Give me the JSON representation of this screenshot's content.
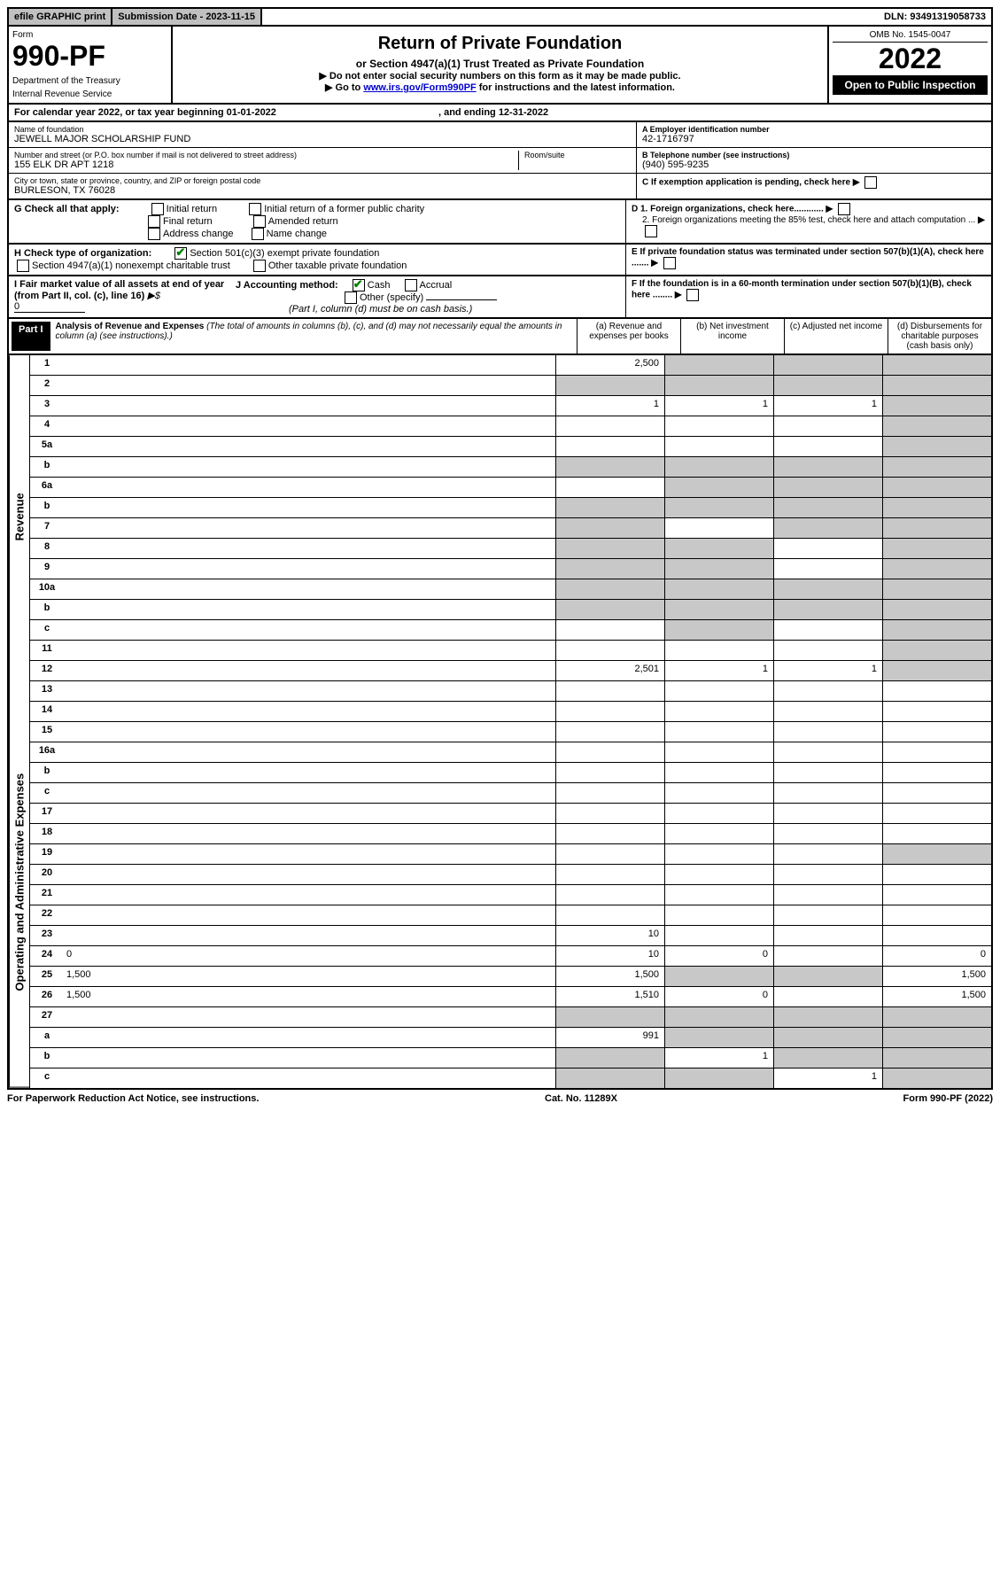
{
  "topbar": {
    "efile": "efile GRAPHIC print",
    "submission": "Submission Date - 2023-11-15",
    "dln": "DLN: 93491319058733"
  },
  "header": {
    "form_label": "Form",
    "form_num": "990-PF",
    "dept1": "Department of the Treasury",
    "dept2": "Internal Revenue Service",
    "title": "Return of Private Foundation",
    "subtitle": "or Section 4947(a)(1) Trust Treated as Private Foundation",
    "note1": "▶ Do not enter social security numbers on this form as it may be made public.",
    "note2_pre": "▶ Go to ",
    "note2_link": "www.irs.gov/Form990PF",
    "note2_post": " for instructions and the latest information.",
    "omb": "OMB No. 1545-0047",
    "taxyear": "2022",
    "open_public": "Open to Public Inspection"
  },
  "calyear": {
    "text": "For calendar year 2022, or tax year beginning 01-01-2022",
    "ending": ", and ending 12-31-2022"
  },
  "info": {
    "name_lbl": "Name of foundation",
    "name_val": "JEWELL MAJOR SCHOLARSHIP FUND",
    "addr_lbl": "Number and street (or P.O. box number if mail is not delivered to street address)",
    "addr_val": "155 ELK DR APT 1218",
    "room_lbl": "Room/suite",
    "city_lbl": "City or town, state or province, country, and ZIP or foreign postal code",
    "city_val": "BURLESON, TX  76028",
    "ein_lbl": "A Employer identification number",
    "ein_val": "42-1716797",
    "phone_lbl": "B Telephone number (see instructions)",
    "phone_val": "(940) 595-9235",
    "pending_lbl": "C If exemption application is pending, check here"
  },
  "checks": {
    "g_label": "G Check all that apply:",
    "initial": "Initial return",
    "initial_former": "Initial return of a former public charity",
    "final": "Final return",
    "amended": "Amended return",
    "address": "Address change",
    "name_change": "Name change",
    "h_label": "H Check type of organization:",
    "h_501c3": "Section 501(c)(3) exempt private foundation",
    "h_4947": "Section 4947(a)(1) nonexempt charitable trust",
    "h_other": "Other taxable private foundation",
    "d1": "D 1. Foreign organizations, check here............",
    "d2": "2. Foreign organizations meeting the 85% test, check here and attach computation ...",
    "e": "E   If private foundation status was terminated under section 507(b)(1)(A), check here .......",
    "i_label": "I Fair market value of all assets at end of year (from Part II, col. (c), line 16)",
    "i_prefix": "▶$",
    "i_val": "0",
    "j_label": "J Accounting method:",
    "j_cash": "Cash",
    "j_accrual": "Accrual",
    "j_other": "Other (specify)",
    "j_note": "(Part I, column (d) must be on cash basis.)",
    "f": "F   If the foundation is in a 60-month termination under section 507(b)(1)(B), check here ........"
  },
  "part1": {
    "label": "Part I",
    "title": "Analysis of Revenue and Expenses",
    "title_note": "(The total of amounts in columns (b), (c), and (d) may not necessarily equal the amounts in column (a) (see instructions).)",
    "col_a": "(a)   Revenue and expenses per books",
    "col_b": "(b)   Net investment income",
    "col_c": "(c)   Adjusted net income",
    "col_d": "(d)   Disbursements for charitable purposes (cash basis only)"
  },
  "side": {
    "revenue": "Revenue",
    "opexp": "Operating and Administrative Expenses"
  },
  "rows": [
    {
      "n": "1",
      "d": "",
      "a": "2,500",
      "b": "",
      "c": "",
      "sb": true,
      "sc": true,
      "sd": true
    },
    {
      "n": "2",
      "d": "",
      "a": "",
      "b": "",
      "c": "",
      "sa": true,
      "sb": true,
      "sc": true,
      "sd": true
    },
    {
      "n": "3",
      "d": "",
      "a": "1",
      "b": "1",
      "c": "1",
      "sd": true
    },
    {
      "n": "4",
      "d": "",
      "a": "",
      "b": "",
      "c": "",
      "sd": true
    },
    {
      "n": "5a",
      "d": "",
      "a": "",
      "b": "",
      "c": "",
      "sd": true
    },
    {
      "n": "b",
      "d": "",
      "a": "",
      "b": "",
      "c": "",
      "sa": true,
      "sb": true,
      "sc": true,
      "sd": true
    },
    {
      "n": "6a",
      "d": "",
      "a": "",
      "b": "",
      "c": "",
      "sb": true,
      "sc": true,
      "sd": true
    },
    {
      "n": "b",
      "d": "",
      "a": "",
      "b": "",
      "c": "",
      "sa": true,
      "sb": true,
      "sc": true,
      "sd": true
    },
    {
      "n": "7",
      "d": "",
      "a": "",
      "b": "",
      "c": "",
      "sa": true,
      "sc": true,
      "sd": true
    },
    {
      "n": "8",
      "d": "",
      "a": "",
      "b": "",
      "c": "",
      "sa": true,
      "sb": true,
      "sd": true
    },
    {
      "n": "9",
      "d": "",
      "a": "",
      "b": "",
      "c": "",
      "sa": true,
      "sb": true,
      "sd": true
    },
    {
      "n": "10a",
      "d": "",
      "a": "",
      "b": "",
      "c": "",
      "sa": true,
      "sb": true,
      "sc": true,
      "sd": true
    },
    {
      "n": "b",
      "d": "",
      "a": "",
      "b": "",
      "c": "",
      "sa": true,
      "sb": true,
      "sc": true,
      "sd": true
    },
    {
      "n": "c",
      "d": "",
      "a": "",
      "b": "",
      "c": "",
      "sb": true,
      "sd": true
    },
    {
      "n": "11",
      "d": "",
      "a": "",
      "b": "",
      "c": "",
      "sd": true
    },
    {
      "n": "12",
      "d": "",
      "a": "2,501",
      "b": "1",
      "c": "1",
      "sd": true
    },
    {
      "n": "13",
      "d": "",
      "a": "",
      "b": "",
      "c": ""
    },
    {
      "n": "14",
      "d": "",
      "a": "",
      "b": "",
      "c": ""
    },
    {
      "n": "15",
      "d": "",
      "a": "",
      "b": "",
      "c": ""
    },
    {
      "n": "16a",
      "d": "",
      "a": "",
      "b": "",
      "c": ""
    },
    {
      "n": "b",
      "d": "",
      "a": "",
      "b": "",
      "c": ""
    },
    {
      "n": "c",
      "d": "",
      "a": "",
      "b": "",
      "c": ""
    },
    {
      "n": "17",
      "d": "",
      "a": "",
      "b": "",
      "c": ""
    },
    {
      "n": "18",
      "d": "",
      "a": "",
      "b": "",
      "c": ""
    },
    {
      "n": "19",
      "d": "",
      "a": "",
      "b": "",
      "c": "",
      "sd": true
    },
    {
      "n": "20",
      "d": "",
      "a": "",
      "b": "",
      "c": ""
    },
    {
      "n": "21",
      "d": "",
      "a": "",
      "b": "",
      "c": ""
    },
    {
      "n": "22",
      "d": "",
      "a": "",
      "b": "",
      "c": ""
    },
    {
      "n": "23",
      "d": "",
      "a": "10",
      "b": "",
      "c": ""
    },
    {
      "n": "24",
      "d": "0",
      "a": "10",
      "b": "0",
      "c": ""
    },
    {
      "n": "25",
      "d": "1,500",
      "a": "1,500",
      "b": "",
      "c": "",
      "sb": true,
      "sc": true
    },
    {
      "n": "26",
      "d": "1,500",
      "a": "1,510",
      "b": "0",
      "c": ""
    },
    {
      "n": "27",
      "d": "",
      "a": "",
      "b": "",
      "c": "",
      "sa": true,
      "sb": true,
      "sc": true,
      "sd": true
    },
    {
      "n": "a",
      "d": "",
      "a": "991",
      "b": "",
      "c": "",
      "sb": true,
      "sc": true,
      "sd": true
    },
    {
      "n": "b",
      "d": "",
      "a": "",
      "b": "1",
      "c": "",
      "sa": true,
      "sc": true,
      "sd": true
    },
    {
      "n": "c",
      "d": "",
      "a": "",
      "b": "",
      "c": "1",
      "sa": true,
      "sb": true,
      "sd": true
    }
  ],
  "footer": {
    "left": "For Paperwork Reduction Act Notice, see instructions.",
    "mid": "Cat. No. 11289X",
    "right": "Form 990-PF (2022)"
  }
}
